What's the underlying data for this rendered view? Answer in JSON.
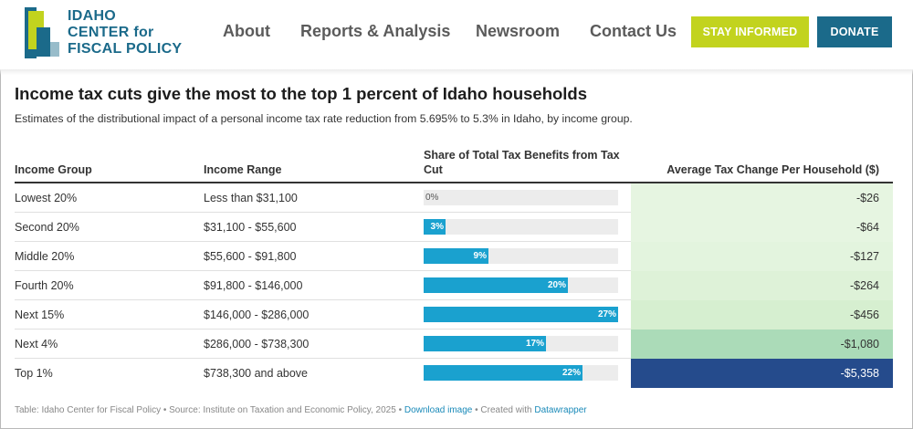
{
  "header": {
    "logo_lines": [
      "IDAHO",
      "CENTER for",
      "FISCAL POLICY"
    ],
    "nav": [
      "About",
      "Reports & Analysis",
      "Newsroom",
      "Contact Us"
    ],
    "stay_informed": "STAY INFORMED",
    "donate": "DONATE"
  },
  "chart": {
    "title": "Income tax cuts give the most to the top 1 percent of Idaho households",
    "subtitle": "Estimates of the distributional impact of a personal income tax rate reduction from 5.695% to 5.3% in Idaho, by income group.",
    "columns": {
      "group": "Income Group",
      "range": "Income Range",
      "share": "Share of Total Tax Benefits from Tax Cut",
      "avg": "Average Tax Change Per Household ($)"
    },
    "footer": {
      "prefix": "Table: Idaho Center for Fiscal Policy • Source: Institute on Taxation and Economic Policy, 2025 • ",
      "download": "Download image",
      "created": " • Created with ",
      "datawrapper": "Datawrapper"
    }
  },
  "chart_data": {
    "type": "table",
    "rows": [
      {
        "group": "Lowest 20%",
        "range": "Less than $31,100",
        "share": 0,
        "share_label": "0%",
        "avg": "-$26",
        "avg_value": -26,
        "avg_color": "#e6f5e1"
      },
      {
        "group": "Second 20%",
        "range": "$31,100 - $55,600",
        "share": 3,
        "share_label": "3%",
        "avg": "-$64",
        "avg_value": -64,
        "avg_color": "#e6f5e1"
      },
      {
        "group": "Middle 20%",
        "range": "$55,600 - $91,800",
        "share": 9,
        "share_label": "9%",
        "avg": "-$127",
        "avg_value": -127,
        "avg_color": "#e3f4de"
      },
      {
        "group": "Fourth 20%",
        "range": "$91,800 - $146,000",
        "share": 20,
        "share_label": "20%",
        "avg": "-$264",
        "avg_value": -264,
        "avg_color": "#def2d8"
      },
      {
        "group": "Next 15%",
        "range": "$146,000 - $286,000",
        "share": 27,
        "share_label": "27%",
        "avg": "-$456",
        "avg_value": -456,
        "avg_color": "#d6efd0"
      },
      {
        "group": "Next 4%",
        "range": "$286,000 - $738,300",
        "share": 17,
        "share_label": "17%",
        "avg": "-$1,080",
        "avg_value": -1080,
        "avg_color": "#abdbb8"
      },
      {
        "group": "Top 1%",
        "range": "$738,300 and above",
        "share": 22,
        "share_label": "22%",
        "avg": "-$5,358",
        "avg_value": -5358,
        "avg_color": "#254b8c"
      }
    ],
    "share_max": 27,
    "bar_color": "#1aa1cf"
  }
}
